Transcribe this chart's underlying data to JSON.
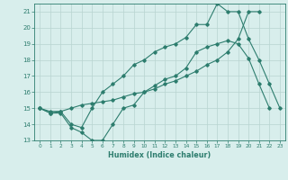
{
  "series1_x": [
    0,
    1,
    2,
    3,
    4,
    5,
    6,
    7,
    8,
    9,
    10,
    11,
    12,
    13,
    14,
    15,
    16,
    17,
    18,
    19,
    20,
    21,
    22,
    23
  ],
  "series1_y": [
    15.0,
    14.7,
    14.7,
    13.8,
    13.5,
    13.0,
    13.0,
    14.0,
    15.0,
    15.2,
    16.0,
    16.4,
    16.8,
    17.0,
    17.5,
    18.5,
    18.8,
    19.0,
    19.2,
    19.0,
    18.1,
    16.5,
    15.0,
    null
  ],
  "series2_x": [
    0,
    1,
    2,
    3,
    4,
    5,
    6,
    7,
    8,
    9,
    10,
    11,
    12,
    13,
    14,
    15,
    16,
    17,
    18,
    19,
    20,
    21,
    22,
    23
  ],
  "series2_y": [
    15.0,
    14.8,
    14.8,
    15.0,
    15.2,
    15.3,
    15.4,
    15.5,
    15.7,
    15.9,
    16.0,
    16.2,
    16.5,
    16.7,
    17.0,
    17.3,
    17.7,
    18.0,
    18.5,
    19.3,
    21.0,
    21.0,
    null,
    null
  ],
  "series3_x": [
    0,
    1,
    2,
    3,
    4,
    5,
    6,
    7,
    8,
    9,
    10,
    11,
    12,
    13,
    14,
    15,
    16,
    17,
    18,
    19,
    20,
    21,
    22,
    23
  ],
  "series3_y": [
    15.0,
    14.7,
    14.8,
    14.0,
    13.8,
    15.0,
    16.0,
    16.5,
    17.0,
    17.7,
    18.0,
    18.5,
    18.8,
    19.0,
    19.4,
    20.2,
    20.2,
    21.5,
    21.0,
    21.0,
    19.3,
    18.0,
    16.5,
    15.0
  ],
  "color": "#2d7d6e",
  "bg_color": "#d8eeec",
  "grid_color": "#b8d4d0",
  "xlabel": "Humidex (Indice chaleur)",
  "xlim_min": -0.5,
  "xlim_max": 23.5,
  "ylim_min": 13,
  "ylim_max": 21.5,
  "xticks": [
    0,
    1,
    2,
    3,
    4,
    5,
    6,
    7,
    8,
    9,
    10,
    11,
    12,
    13,
    14,
    15,
    16,
    17,
    18,
    19,
    20,
    21,
    22,
    23
  ],
  "yticks": [
    13,
    14,
    15,
    16,
    17,
    18,
    19,
    20,
    21
  ]
}
